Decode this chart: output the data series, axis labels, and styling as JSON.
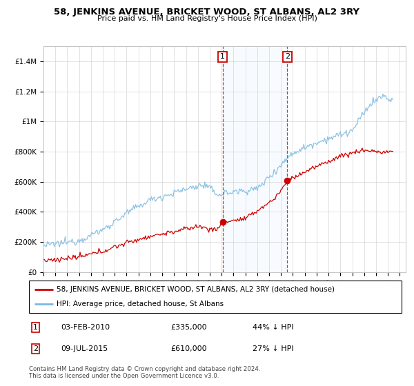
{
  "title": "58, JENKINS AVENUE, BRICKET WOOD, ST ALBANS, AL2 3RY",
  "subtitle": "Price paid vs. HM Land Registry's House Price Index (HPI)",
  "hpi_color": "#7ab8e0",
  "price_color": "#cc0000",
  "annotation_box_color": "#cc0000",
  "shaded_region_color": "#ddeeff",
  "legend_label_price": "58, JENKINS AVENUE, BRICKET WOOD, ST ALBANS, AL2 3RY (detached house)",
  "legend_label_hpi": "HPI: Average price, detached house, St Albans",
  "transaction1_date": "03-FEB-2010",
  "transaction1_price": 335000,
  "transaction1_x": 2010.09,
  "transaction2_date": "09-JUL-2015",
  "transaction2_price": 610000,
  "transaction2_x": 2015.53,
  "footer": "Contains HM Land Registry data © Crown copyright and database right 2024.\nThis data is licensed under the Open Government Licence v3.0.",
  "ylim": [
    0,
    1500000
  ],
  "xlim_start": 1995,
  "xlim_end": 2025.5
}
